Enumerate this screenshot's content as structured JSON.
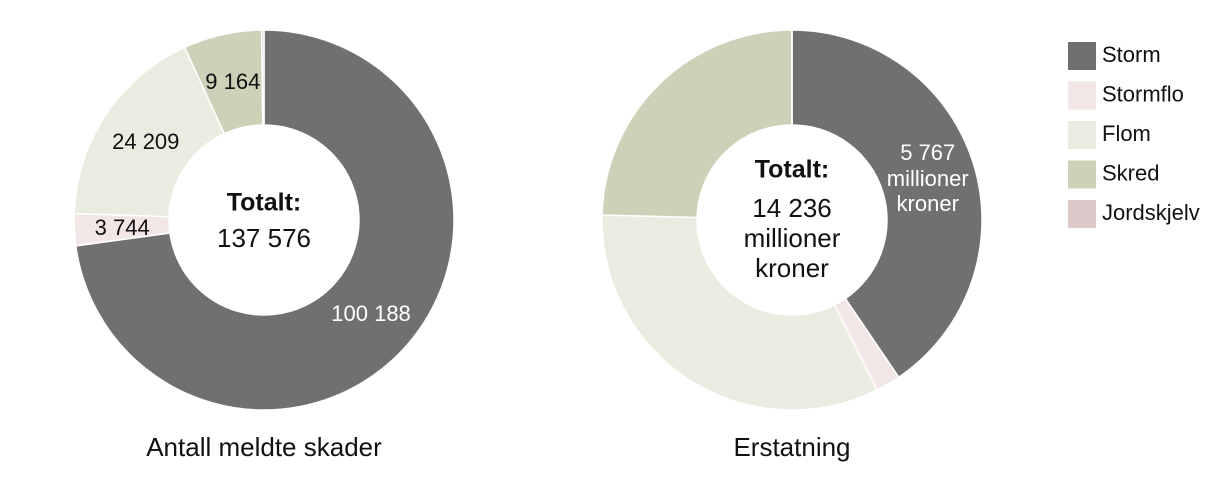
{
  "chart_data": [
    {
      "type": "donut",
      "title": "Antall meldte skader",
      "categories": [
        "Storm",
        "Stormflo",
        "Flom",
        "Skred",
        "Jordskjelv"
      ],
      "values": [
        100188,
        3744,
        24209,
        9164,
        271
      ],
      "value_labels": [
        "100 188",
        "3 744",
        "24 209",
        "9 164",
        null
      ],
      "colors": [
        "#707070",
        "#f3e6e6",
        "#eaecdf",
        "#cdd1b8",
        "#dccaca"
      ],
      "center_title": "Totalt:",
      "center_label": "137 576"
    },
    {
      "type": "donut",
      "title": "Erstatning",
      "categories": [
        "Storm",
        "Stormflo",
        "Flom",
        "Skred",
        "Jordskjelv"
      ],
      "values": [
        5767,
        300,
        4669,
        3500,
        0
      ],
      "value_labels": [
        "5 767\nmillioner\nkroner",
        null,
        null,
        null,
        null
      ],
      "colors": [
        "#707070",
        "#f3e6e6",
        "#eaecdf",
        "#cdd1b8",
        "#dccaca"
      ],
      "center_title": "Totalt:",
      "center_label": "14 236\nmillioner\nkroner"
    }
  ]
}
